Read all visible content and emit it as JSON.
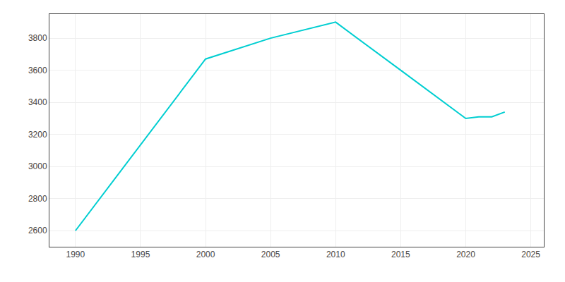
{
  "chart_data": {
    "type": "line",
    "x": [
      1990,
      2000,
      2005,
      2010,
      2015,
      2020,
      2021,
      2022,
      2023
    ],
    "values": [
      2600,
      3670,
      3800,
      3900,
      3600,
      3300,
      3310,
      3310,
      3340
    ],
    "color": "#00CED1",
    "xlim": [
      1988,
      2026
    ],
    "ylim": [
      2500,
      3950
    ],
    "xticks": [
      1990,
      1995,
      2000,
      2005,
      2010,
      2015,
      2020,
      2025
    ],
    "yticks": [
      2600,
      2800,
      3000,
      3200,
      3400,
      3600,
      3800
    ],
    "grid": true
  }
}
